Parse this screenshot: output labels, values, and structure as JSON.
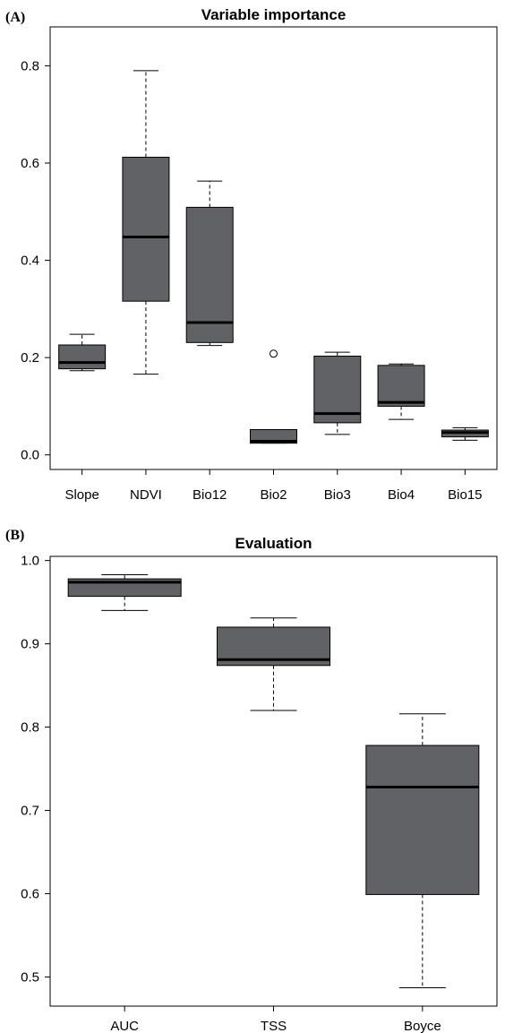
{
  "chart_data": [
    {
      "type": "boxplot",
      "panel_tag": "(A)",
      "title": "Variable importance",
      "xlabel": "",
      "ylabel": "",
      "ylim": [
        -0.03,
        0.88
      ],
      "yticks": [
        0.0,
        0.2,
        0.4,
        0.6,
        0.8
      ],
      "ytick_labels": [
        "0.0",
        "0.2",
        "0.4",
        "0.6",
        "0.8"
      ],
      "grid": false,
      "box_color": "#606265",
      "categories": [
        "Slope",
        "NDVI",
        "Bio12",
        "Bio2",
        "Bio3",
        "Bio4",
        "Bio15"
      ],
      "boxes": [
        {
          "label": "Slope",
          "min": 0.173,
          "q1": 0.177,
          "median": 0.19,
          "q3": 0.226,
          "max": 0.248,
          "outliers": []
        },
        {
          "label": "NDVI",
          "min": 0.166,
          "q1": 0.316,
          "median": 0.448,
          "q3": 0.612,
          "max": 0.79,
          "outliers": []
        },
        {
          "label": "Bio12",
          "min": 0.225,
          "q1": 0.231,
          "median": 0.272,
          "q3": 0.509,
          "max": 0.563,
          "outliers": []
        },
        {
          "label": "Bio2",
          "min": 0.024,
          "q1": 0.024,
          "median": 0.028,
          "q3": 0.052,
          "max": 0.052,
          "outliers": [
            0.208
          ]
        },
        {
          "label": "Bio3",
          "min": 0.042,
          "q1": 0.066,
          "median": 0.085,
          "q3": 0.203,
          "max": 0.211,
          "outliers": []
        },
        {
          "label": "Bio4",
          "min": 0.073,
          "q1": 0.1,
          "median": 0.108,
          "q3": 0.184,
          "max": 0.187,
          "outliers": []
        },
        {
          "label": "Bio15",
          "min": 0.03,
          "q1": 0.037,
          "median": 0.046,
          "q3": 0.051,
          "max": 0.056,
          "outliers": []
        }
      ]
    },
    {
      "type": "boxplot",
      "panel_tag": "(B)",
      "title": "Evaluation",
      "xlabel": "",
      "ylabel": "",
      "ylim": [
        0.465,
        1.005
      ],
      "yticks": [
        0.5,
        0.6,
        0.7,
        0.8,
        0.9,
        1.0
      ],
      "ytick_labels": [
        "0.5",
        "0.6",
        "0.7",
        "0.8",
        "0.9",
        "1.0"
      ],
      "grid": false,
      "box_color": "#606265",
      "categories": [
        "AUC",
        "TSS",
        "Boyce"
      ],
      "boxes": [
        {
          "label": "AUC",
          "min": 0.94,
          "q1": 0.957,
          "median": 0.974,
          "q3": 0.978,
          "max": 0.983,
          "outliers": []
        },
        {
          "label": "TSS",
          "min": 0.82,
          "q1": 0.874,
          "median": 0.881,
          "q3": 0.92,
          "max": 0.931,
          "outliers": []
        },
        {
          "label": "Boyce",
          "min": 0.487,
          "q1": 0.599,
          "median": 0.728,
          "q3": 0.778,
          "max": 0.816,
          "outliers": []
        }
      ]
    }
  ]
}
